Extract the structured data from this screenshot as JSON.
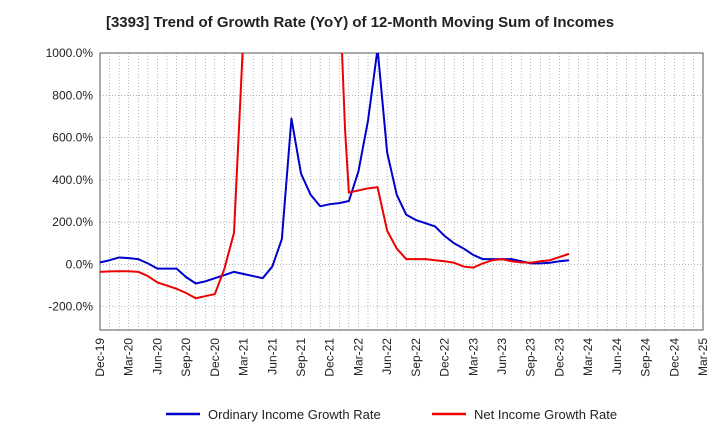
{
  "chart_data": {
    "type": "line",
    "title": "[3393]  Trend of Growth Rate (YoY) of 12-Month Moving Sum of Incomes",
    "ylim": [
      -310,
      1000
    ],
    "yticks": [
      -200,
      0,
      200,
      400,
      600,
      800,
      1000
    ],
    "ytick_labels": [
      "-200.0%",
      "0.0%",
      "200.0%",
      "400.0%",
      "600.0%",
      "800.0%",
      "1000.0%"
    ],
    "x_categories": [
      "Dec-19",
      "Mar-20",
      "Jun-20",
      "Sep-20",
      "Dec-20",
      "Mar-21",
      "Jun-21",
      "Sep-21",
      "Dec-21",
      "Mar-22",
      "Jun-22",
      "Sep-22",
      "Dec-22",
      "Mar-23",
      "Jun-23",
      "Sep-23",
      "Dec-23",
      "Mar-24",
      "Jun-24",
      "Sep-24",
      "Dec-24",
      "Mar-25"
    ],
    "grid": true,
    "legend_position": "bottom",
    "series": [
      {
        "name": "Ordinary Income Growth Rate",
        "color": "#0000cc",
        "points": [
          [
            0,
            10
          ],
          [
            1,
            20
          ],
          [
            2,
            33
          ],
          [
            3,
            30
          ],
          [
            4,
            25
          ],
          [
            5,
            5
          ],
          [
            6,
            -20
          ],
          [
            7,
            -20
          ],
          [
            8,
            -20
          ],
          [
            9,
            -60
          ],
          [
            10,
            -90
          ],
          [
            11,
            -80
          ],
          [
            12,
            -65
          ],
          [
            13,
            -50
          ],
          [
            14,
            -35
          ],
          [
            15,
            -45
          ],
          [
            16,
            -55
          ],
          [
            17,
            -65
          ],
          [
            18,
            -10
          ],
          [
            19,
            120
          ],
          [
            20,
            690
          ],
          [
            21,
            430
          ],
          [
            22,
            330
          ],
          [
            23,
            275
          ],
          [
            24,
            285
          ],
          [
            25,
            290
          ],
          [
            26,
            300
          ],
          [
            27,
            440
          ],
          [
            28,
            680
          ],
          [
            29,
            1020
          ],
          [
            30,
            530
          ],
          [
            31,
            330
          ],
          [
            32,
            235
          ],
          [
            33,
            210
          ],
          [
            34,
            195
          ],
          [
            35,
            180
          ],
          [
            36,
            135
          ],
          [
            37,
            100
          ],
          [
            38,
            75
          ],
          [
            39,
            45
          ],
          [
            40,
            25
          ],
          [
            41,
            25
          ],
          [
            42,
            25
          ],
          [
            43,
            25
          ],
          [
            44,
            15
          ],
          [
            45,
            5
          ],
          [
            46,
            5
          ],
          [
            47,
            8
          ],
          [
            48,
            15
          ],
          [
            49,
            20
          ]
        ]
      },
      {
        "name": "Net Income Growth Rate",
        "color": "#ee0000",
        "points": [
          [
            0,
            -35
          ],
          [
            1,
            -33
          ],
          [
            2,
            -32
          ],
          [
            3,
            -32
          ],
          [
            4,
            -35
          ],
          [
            5,
            -55
          ],
          [
            6,
            -85
          ],
          [
            7,
            -100
          ],
          [
            8,
            -115
          ],
          [
            9,
            -135
          ],
          [
            10,
            -160
          ],
          [
            11,
            -150
          ],
          [
            12,
            -140
          ],
          [
            13,
            -20
          ],
          [
            14,
            150
          ],
          [
            15,
            1100
          ],
          [
            25.2,
            1100
          ],
          [
            25.6,
            640
          ],
          [
            26,
            340
          ],
          [
            27,
            350
          ],
          [
            28,
            360
          ],
          [
            29,
            365
          ],
          [
            30,
            160
          ],
          [
            31,
            75
          ],
          [
            32,
            25
          ],
          [
            33,
            25
          ],
          [
            34,
            25
          ],
          [
            35,
            20
          ],
          [
            36,
            15
          ],
          [
            37,
            8
          ],
          [
            38,
            -10
          ],
          [
            39,
            -15
          ],
          [
            40,
            5
          ],
          [
            41,
            20
          ],
          [
            42,
            25
          ],
          [
            43,
            15
          ],
          [
            44,
            10
          ],
          [
            45,
            8
          ],
          [
            46,
            15
          ],
          [
            47,
            20
          ],
          [
            48,
            35
          ],
          [
            49,
            50
          ]
        ]
      }
    ]
  }
}
